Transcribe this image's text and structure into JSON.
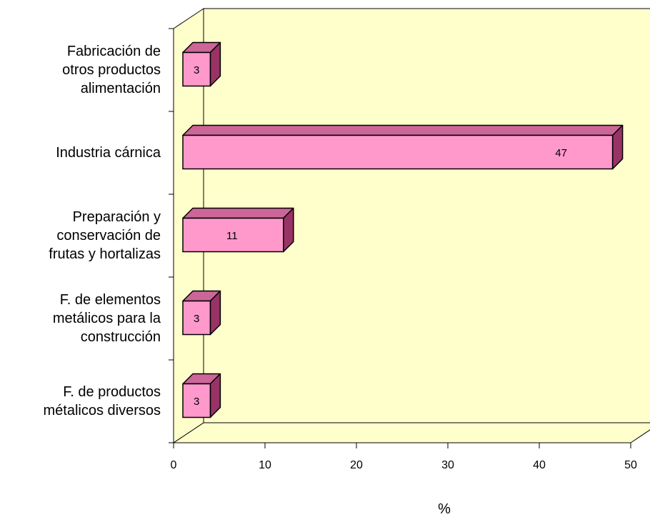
{
  "chart_data": {
    "type": "bar",
    "orientation": "horizontal",
    "three_d": true,
    "categories": [
      [
        "Fabricación de",
        "otros productos",
        "alimentación"
      ],
      [
        "Industria cárnica"
      ],
      [
        "Preparación y",
        "conservación de",
        "frutas y hortalizas"
      ],
      [
        "F. de elementos",
        "metálicos para la",
        "construcción"
      ],
      [
        "F. de productos",
        "métalicos diversos"
      ]
    ],
    "values": [
      3,
      47,
      11,
      3,
      3
    ],
    "data_labels": [
      "3",
      "47",
      "11",
      "3",
      "3"
    ],
    "xlabel": "%",
    "xlim": [
      0,
      50
    ],
    "xticks": [
      0,
      10,
      20,
      30,
      40,
      50
    ],
    "xtick_labels": [
      "0",
      "10",
      "20",
      "30",
      "40",
      "50"
    ],
    "grid": false,
    "legend": "none",
    "colors": {
      "bar_front": "#FF99CC",
      "bar_top": "#CC6699",
      "bar_side": "#993366",
      "wall": "#FFFFCC",
      "outline": "#000000"
    }
  }
}
